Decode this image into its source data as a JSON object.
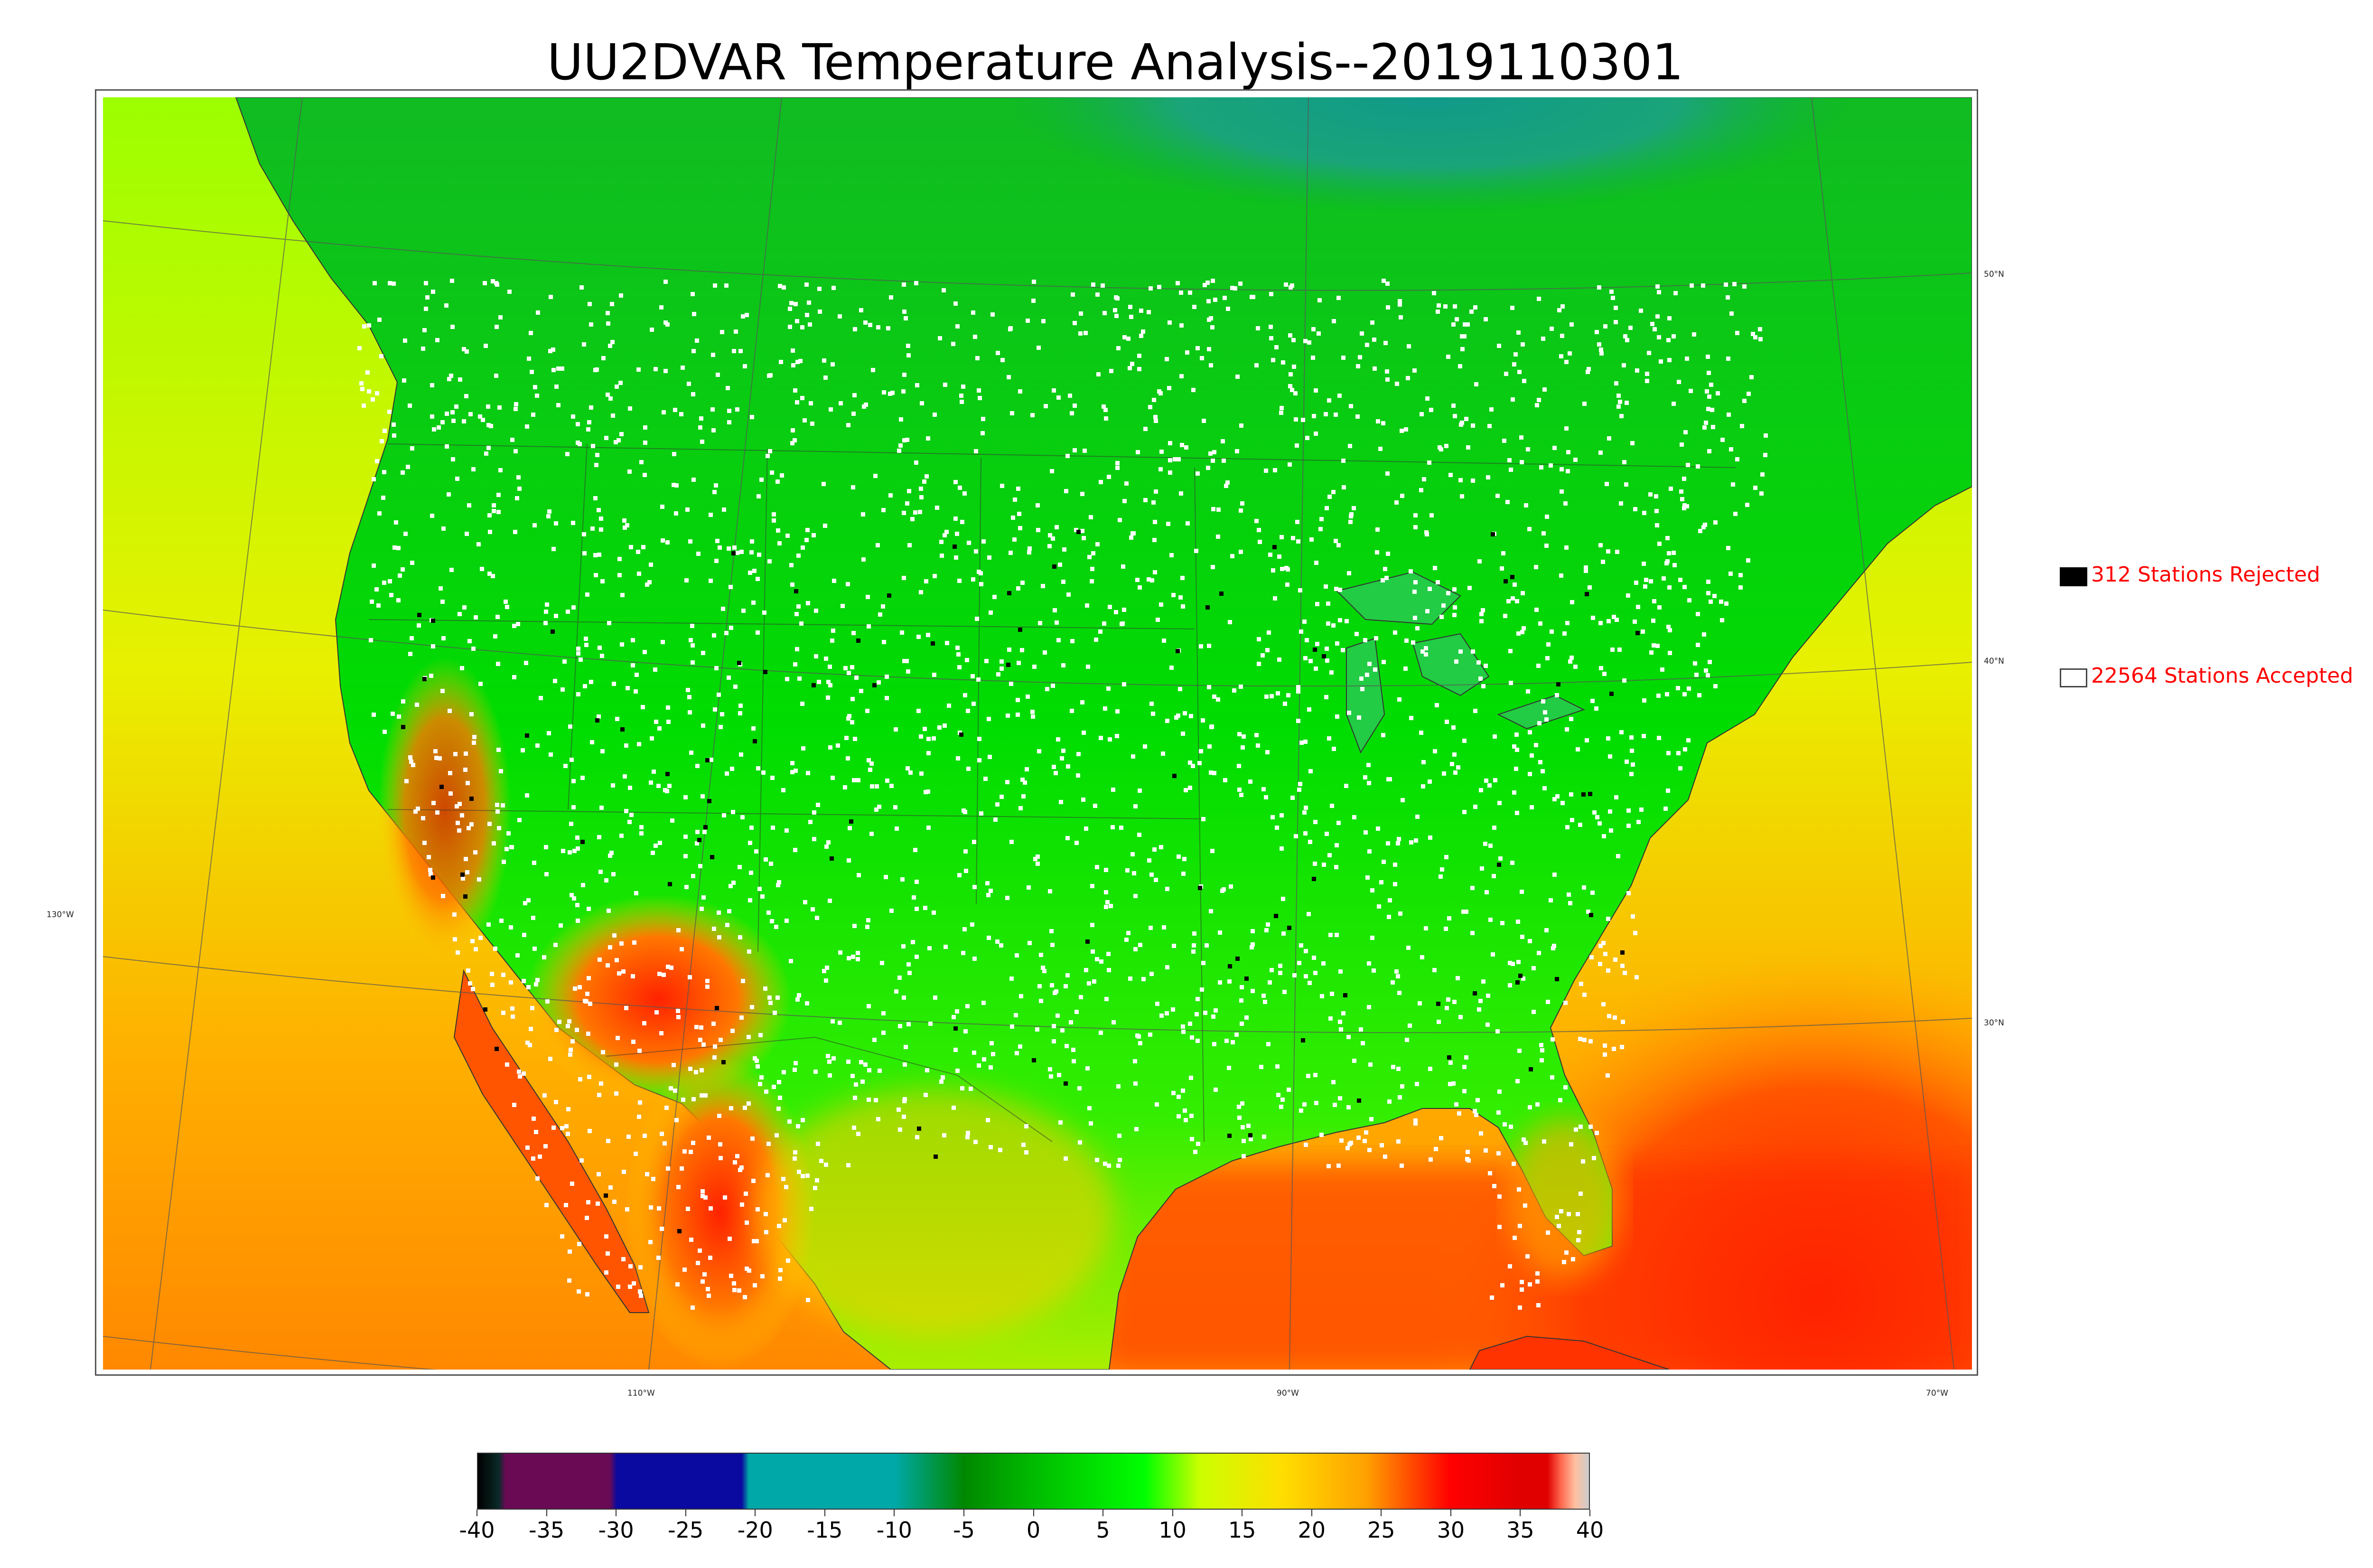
{
  "title": "UU2DVAR Temperature Analysis--2019110301",
  "map": {
    "lat_labels": [
      "50°N",
      "40°N",
      "30°N"
    ],
    "lon_labels": [
      "130°W",
      "110°W",
      "90°W",
      "70°W"
    ]
  },
  "legend": {
    "rejected": {
      "label": "312 Stations Rejected",
      "count": 312,
      "swatch_color": "#000000"
    },
    "accepted": {
      "label": "22564 Stations Accepted",
      "count": 22564,
      "swatch_color": "#ffffff"
    },
    "text_color": "#ff0000"
  },
  "colorbar": {
    "ticks": [
      "-40",
      "-35",
      "-30",
      "-25",
      "-20",
      "-15",
      "-10",
      "-5",
      "0",
      "5",
      "10",
      "15",
      "20",
      "25",
      "30",
      "35",
      "40"
    ],
    "min": -40,
    "max": 40,
    "color_stops": [
      {
        "value": -40,
        "color": "#000000"
      },
      {
        "value": -38.5,
        "color": "#0a2a28"
      },
      {
        "value": -38,
        "color": "#6a0a55"
      },
      {
        "value": -30.5,
        "color": "#6a0a55"
      },
      {
        "value": -30,
        "color": "#0a0aa0"
      },
      {
        "value": -21,
        "color": "#0a0aa0"
      },
      {
        "value": -20.5,
        "color": "#00a8a8"
      },
      {
        "value": -10,
        "color": "#00a8a8"
      },
      {
        "value": -5,
        "color": "#008800"
      },
      {
        "value": 0,
        "color": "#00bb00"
      },
      {
        "value": 8,
        "color": "#00ff00"
      },
      {
        "value": 12,
        "color": "#ccff00"
      },
      {
        "value": 18,
        "color": "#ffdd00"
      },
      {
        "value": 24,
        "color": "#ffa000"
      },
      {
        "value": 27,
        "color": "#ff5000"
      },
      {
        "value": 30,
        "color": "#ff0000"
      },
      {
        "value": 35,
        "color": "#e00000"
      },
      {
        "value": 37,
        "color": "#e00000"
      },
      {
        "value": 38,
        "color": "#ff6a50"
      },
      {
        "value": 39,
        "color": "#ffc0a0"
      },
      {
        "value": 40,
        "color": "#cccccc"
      }
    ]
  },
  "colors": {
    "warm_ocean": "#ff2a00",
    "land_cool": "#00cc22",
    "far_north": "#1aa090",
    "pacific": "#c8ff00"
  }
}
